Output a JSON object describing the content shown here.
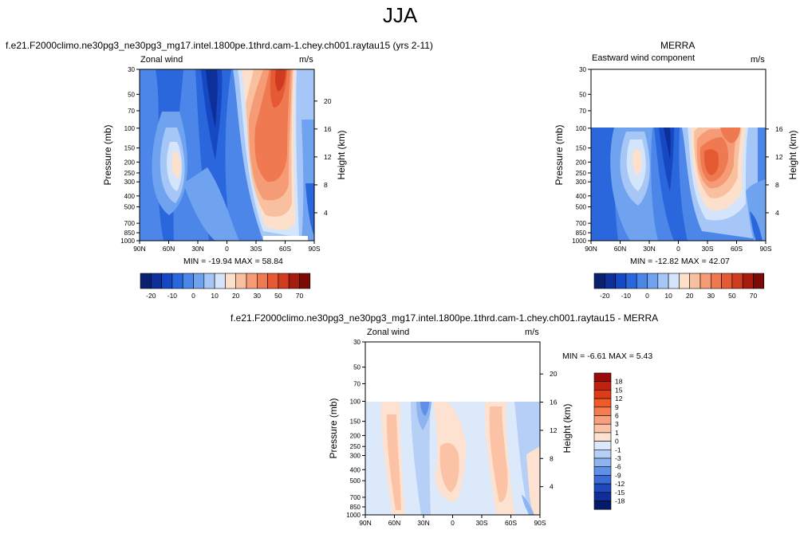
{
  "main_title": "JJA",
  "panels": {
    "test": {
      "title": "f.e21.F2000climo.ne30pg3_ne30pg3_mg17.intel.1800pe.1thrd.cam-1.chey.ch001.raytau15 (yrs 2-11)",
      "left_label": "Zonal wind",
      "units": "m/s",
      "ylabel": "Pressure (mb)",
      "y2label": "Height (km)",
      "stats": "MIN = -19.94  MAX =  58.84"
    },
    "ref": {
      "title": "MERRA",
      "left_label": "Eastward wind component",
      "units": "m/s",
      "ylabel": "Pressure (mb)",
      "y2label": "Height (km)",
      "stats": "MIN = -12.82  MAX =  42.07"
    },
    "diff": {
      "title": "f.e21.F2000climo.ne30pg3_ne30pg3_mg17.intel.1800pe.1thrd.cam-1.chey.ch001.raytau15 - MERRA",
      "left_label": "Zonal wind",
      "units": "m/s",
      "ylabel": "Pressure (mb)",
      "y2label": "Height (km)",
      "stats": "MIN = -6.61  MAX =  5.43"
    }
  },
  "chart_data": [
    {
      "type": "heatmap",
      "name": "test",
      "x_ticks": [
        "90N",
        "60N",
        "30N",
        "0",
        "30S",
        "60S",
        "90S"
      ],
      "y_ticks": [
        30,
        50,
        70,
        100,
        150,
        200,
        250,
        300,
        400,
        500,
        700,
        850,
        1000
      ],
      "y_scale": "log",
      "y_reversed": true,
      "height_ticks_km": [
        4,
        8,
        12,
        16,
        20
      ],
      "colorbar_levels": [
        -25,
        -20,
        -15,
        -10,
        -5,
        0,
        5,
        10,
        15,
        20,
        25,
        30,
        40,
        50,
        60,
        70
      ],
      "colorbar_labels": [
        "-20",
        "-10",
        "0",
        "10",
        "20",
        "30",
        "50",
        "70"
      ],
      "colorbar_colors": [
        "#0a1f6e",
        "#0c2f9a",
        "#1548c2",
        "#2a66dc",
        "#4b86e8",
        "#6fa3f0",
        "#a5c6f7",
        "#d3e4fb",
        "#fde0cc",
        "#f9c0a0",
        "#f59c76",
        "#ef7a52",
        "#e55a33",
        "#d03a1e",
        "#a81b10",
        "#7a0a06"
      ],
      "stats": {
        "min": -19.94,
        "max": 58.84
      }
    },
    {
      "type": "heatmap",
      "name": "ref",
      "x_ticks": [
        "90N",
        "60N",
        "30N",
        "0",
        "30S",
        "60S",
        "90S"
      ],
      "y_ticks": [
        30,
        50,
        70,
        100,
        150,
        200,
        250,
        300,
        400,
        500,
        700,
        850,
        1000
      ],
      "y_scale": "log",
      "y_reversed": true,
      "height_ticks_km": [
        4,
        8,
        12,
        16
      ],
      "data_top_mb": 100,
      "colorbar_labels": [
        "-20",
        "-10",
        "0",
        "10",
        "20",
        "30",
        "50",
        "70"
      ],
      "stats": {
        "min": -12.82,
        "max": 42.07
      }
    },
    {
      "type": "heatmap",
      "name": "diff",
      "x_ticks": [
        "90N",
        "60N",
        "30N",
        "0",
        "30S",
        "60S",
        "90S"
      ],
      "y_ticks": [
        30,
        50,
        70,
        100,
        150,
        200,
        250,
        300,
        400,
        500,
        700,
        850,
        1000
      ],
      "y_scale": "log",
      "y_reversed": true,
      "height_ticks_km": [
        4,
        8,
        12,
        16,
        20
      ],
      "data_top_mb": 100,
      "colorbar_labels": [
        "18",
        "15",
        "12",
        "9",
        "6",
        "3",
        "1",
        "0",
        "-1",
        "-3",
        "-6",
        "-9",
        "-12",
        "-15",
        "-18"
      ],
      "colorbar_colors": [
        "#9a0c0c",
        "#c0220f",
        "#dc3d18",
        "#ee5a2a",
        "#f47c4e",
        "#f8a07c",
        "#fbc2a6",
        "#fde2d2",
        "#dce9fb",
        "#b5cff6",
        "#8db3f0",
        "#5f8fe6",
        "#3a6bd8",
        "#1f48bd",
        "#0f2e96",
        "#061a6b"
      ],
      "stats": {
        "min": -6.61,
        "max": 5.43
      }
    }
  ]
}
